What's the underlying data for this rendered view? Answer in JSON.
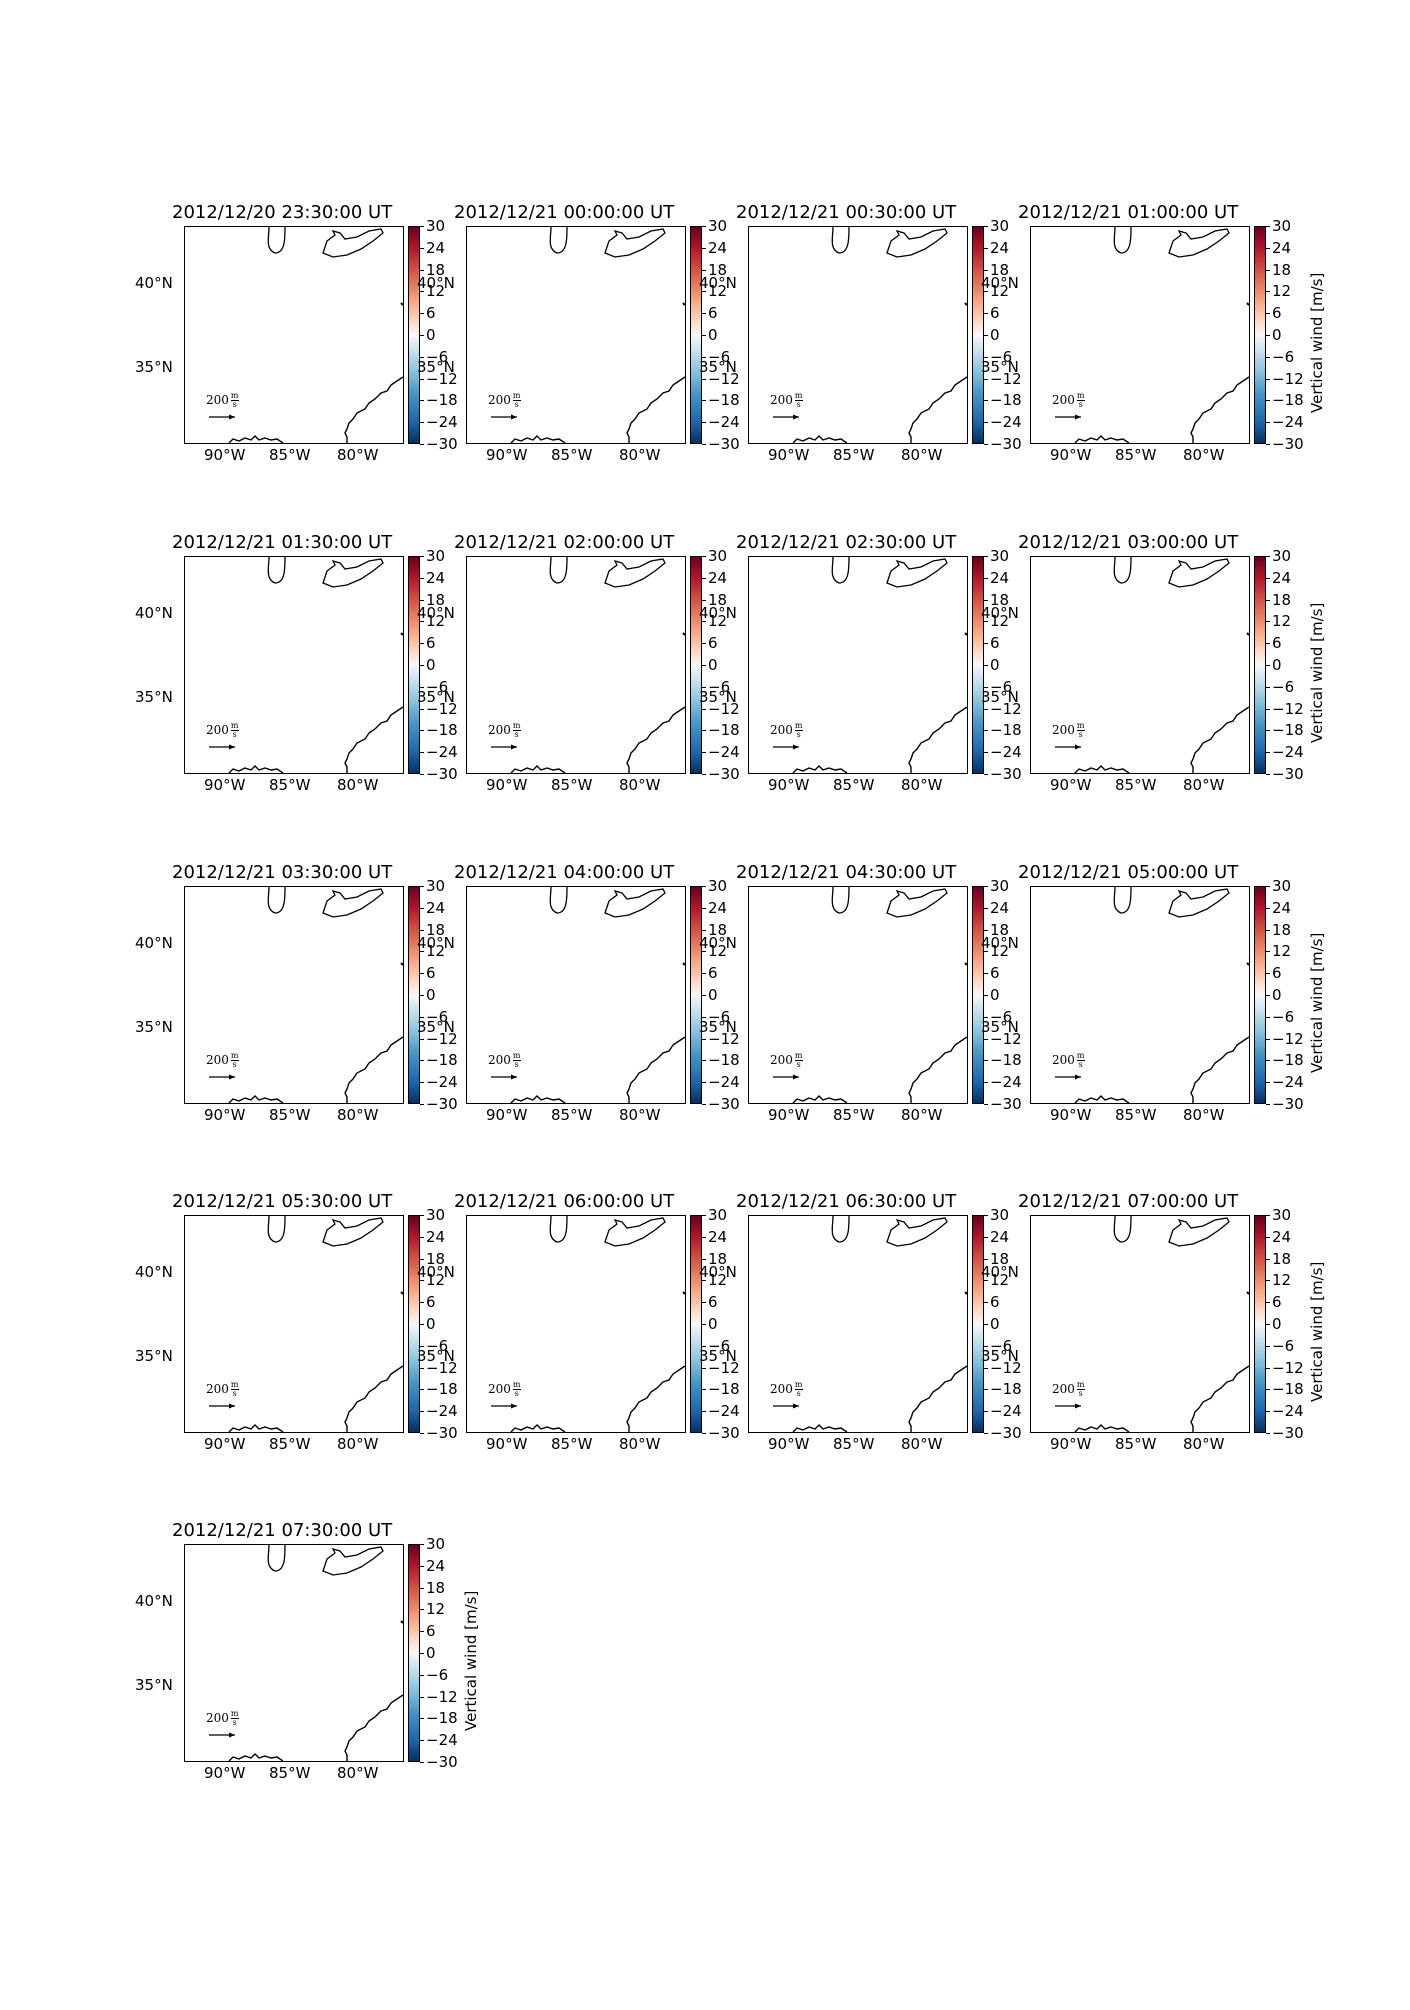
{
  "colorbar": {
    "label": "Vertical wind [m/s]",
    "ticks": [
      "30",
      "24",
      "18",
      "12",
      "6",
      "0",
      "−6",
      "−12",
      "−18",
      "−24",
      "−30"
    ],
    "range": [
      -30,
      30
    ],
    "colormap": "RdBu_r",
    "colors": [
      "#67001f",
      "#b2182b",
      "#d6604d",
      "#f4a582",
      "#fddbc7",
      "#f7f7f7",
      "#d1e5f0",
      "#92c5de",
      "#4393c3",
      "#2166ac",
      "#053061"
    ]
  },
  "map": {
    "lat_labels": [
      "40°N",
      "35°N"
    ],
    "lon_labels": [
      "90°W",
      "85°W",
      "80°W"
    ],
    "reference_vector": {
      "value": "200",
      "unit_num": "m",
      "unit_den": "s"
    }
  },
  "panels": [
    {
      "title": "2012/12/20 23:30:00 UT",
      "show_cb_label": false
    },
    {
      "title": "2012/12/21 00:00:00 UT",
      "show_cb_label": false
    },
    {
      "title": "2012/12/21 00:30:00 UT",
      "show_cb_label": false
    },
    {
      "title": "2012/12/21 01:00:00 UT",
      "show_cb_label": true
    },
    {
      "title": "2012/12/21 01:30:00 UT",
      "show_cb_label": false
    },
    {
      "title": "2012/12/21 02:00:00 UT",
      "show_cb_label": false
    },
    {
      "title": "2012/12/21 02:30:00 UT",
      "show_cb_label": false
    },
    {
      "title": "2012/12/21 03:00:00 UT",
      "show_cb_label": true
    },
    {
      "title": "2012/12/21 03:30:00 UT",
      "show_cb_label": false
    },
    {
      "title": "2012/12/21 04:00:00 UT",
      "show_cb_label": false
    },
    {
      "title": "2012/12/21 04:30:00 UT",
      "show_cb_label": false
    },
    {
      "title": "2012/12/21 05:00:00 UT",
      "show_cb_label": true
    },
    {
      "title": "2012/12/21 05:30:00 UT",
      "show_cb_label": false
    },
    {
      "title": "2012/12/21 06:00:00 UT",
      "show_cb_label": false
    },
    {
      "title": "2012/12/21 06:30:00 UT",
      "show_cb_label": false
    },
    {
      "title": "2012/12/21 07:00:00 UT",
      "show_cb_label": true
    },
    {
      "title": "2012/12/21 07:30:00 UT",
      "show_cb_label": true
    }
  ]
}
